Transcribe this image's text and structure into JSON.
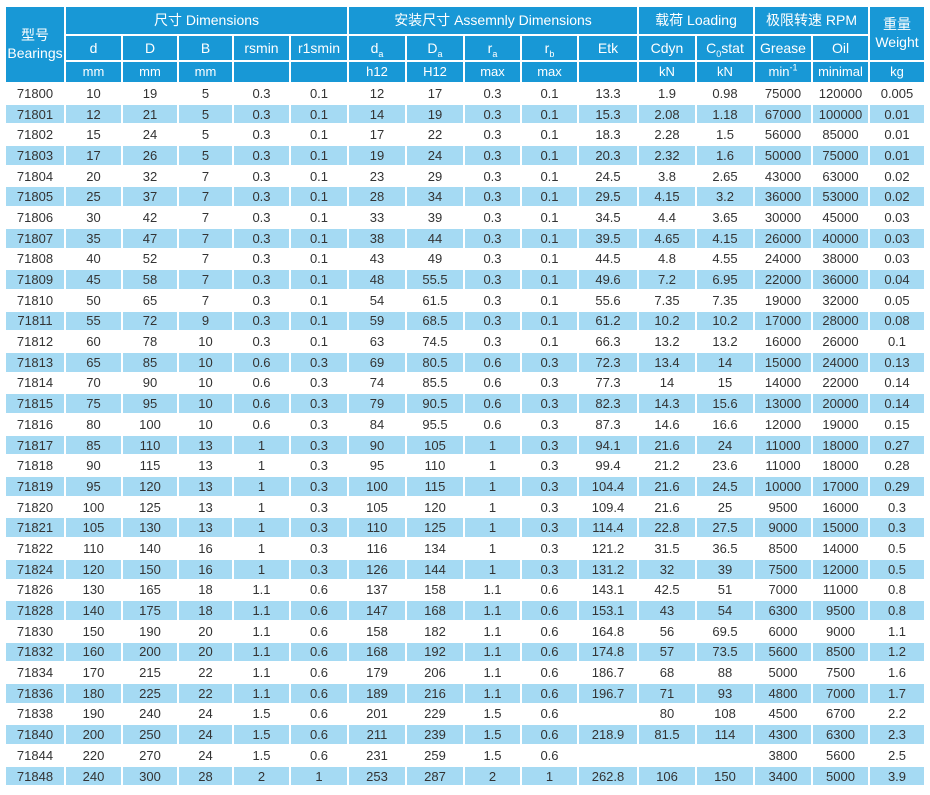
{
  "colors": {
    "header_blue": "#1898d6",
    "row_alt_blue": "#a5daf3",
    "cell_text": "#333333",
    "header_text": "#ffffff"
  },
  "header": {
    "bearings_zh": "型号",
    "bearings_en": "Bearings",
    "groups": {
      "dimensions": "尺寸 Dimensions",
      "assembly": "安装尺寸 Assemnly Dimensions",
      "loading": "载荷 Loading",
      "rpm": "极限转速 RPM",
      "weight_zh": "重量",
      "weight_en": "Weight"
    },
    "cols": {
      "d": "d",
      "D": "D",
      "B": "B",
      "rsmin": "rsmin",
      "r1smin": "r1smin",
      "da_base": "d",
      "da_sub": "a",
      "Da_base": "D",
      "Da_sub": "a",
      "ra_base": "r",
      "ra_sub": "a",
      "rb_base": "r",
      "rb_sub": "b",
      "etk": "Etk",
      "cdyn": "Cdyn",
      "costat_base": "C",
      "costat_sub": "0",
      "costat_rest": "stat",
      "grease": "Grease",
      "oil": "Oil"
    },
    "units": {
      "mm1": "mm",
      "mm2": "mm",
      "mm3": "mm",
      "rsmin": "",
      "r1smin": "",
      "h12": "h12",
      "H12": "H12",
      "ra": "max",
      "rb": "max",
      "etk": "",
      "kn1": "kN",
      "kn2": "kN",
      "grease_base": "min",
      "grease_sup": "-1",
      "oil": "minimal",
      "kg": "kg"
    }
  },
  "table": {
    "col_keys": [
      "bearing",
      "d",
      "D",
      "B",
      "rsmin",
      "r1smin",
      "da",
      "Da",
      "ra",
      "rb",
      "Etk",
      "Cdyn",
      "C0stat",
      "grease",
      "oil",
      "weight"
    ],
    "rows": [
      [
        "71800",
        "10",
        "19",
        "5",
        "0.3",
        "0.1",
        "12",
        "17",
        "0.3",
        "0.1",
        "13.3",
        "1.9",
        "0.98",
        "75000",
        "120000",
        "0.005"
      ],
      [
        "71801",
        "12",
        "21",
        "5",
        "0.3",
        "0.1",
        "14",
        "19",
        "0.3",
        "0.1",
        "15.3",
        "2.08",
        "1.18",
        "67000",
        "100000",
        "0.01"
      ],
      [
        "71802",
        "15",
        "24",
        "5",
        "0.3",
        "0.1",
        "17",
        "22",
        "0.3",
        "0.1",
        "18.3",
        "2.28",
        "1.5",
        "56000",
        "85000",
        "0.01"
      ],
      [
        "71803",
        "17",
        "26",
        "5",
        "0.3",
        "0.1",
        "19",
        "24",
        "0.3",
        "0.1",
        "20.3",
        "2.32",
        "1.6",
        "50000",
        "75000",
        "0.01"
      ],
      [
        "71804",
        "20",
        "32",
        "7",
        "0.3",
        "0.1",
        "23",
        "29",
        "0.3",
        "0.1",
        "24.5",
        "3.8",
        "2.65",
        "43000",
        "63000",
        "0.02"
      ],
      [
        "71805",
        "25",
        "37",
        "7",
        "0.3",
        "0.1",
        "28",
        "34",
        "0.3",
        "0.1",
        "29.5",
        "4.15",
        "3.2",
        "36000",
        "53000",
        "0.02"
      ],
      [
        "71806",
        "30",
        "42",
        "7",
        "0.3",
        "0.1",
        "33",
        "39",
        "0.3",
        "0.1",
        "34.5",
        "4.4",
        "3.65",
        "30000",
        "45000",
        "0.03"
      ],
      [
        "71807",
        "35",
        "47",
        "7",
        "0.3",
        "0.1",
        "38",
        "44",
        "0.3",
        "0.1",
        "39.5",
        "4.65",
        "4.15",
        "26000",
        "40000",
        "0.03"
      ],
      [
        "71808",
        "40",
        "52",
        "7",
        "0.3",
        "0.1",
        "43",
        "49",
        "0.3",
        "0.1",
        "44.5",
        "4.8",
        "4.55",
        "24000",
        "38000",
        "0.03"
      ],
      [
        "71809",
        "45",
        "58",
        "7",
        "0.3",
        "0.1",
        "48",
        "55.5",
        "0.3",
        "0.1",
        "49.6",
        "7.2",
        "6.95",
        "22000",
        "36000",
        "0.04"
      ],
      [
        "71810",
        "50",
        "65",
        "7",
        "0.3",
        "0.1",
        "54",
        "61.5",
        "0.3",
        "0.1",
        "55.6",
        "7.35",
        "7.35",
        "19000",
        "32000",
        "0.05"
      ],
      [
        "71811",
        "55",
        "72",
        "9",
        "0.3",
        "0.1",
        "59",
        "68.5",
        "0.3",
        "0.1",
        "61.2",
        "10.2",
        "10.2",
        "17000",
        "28000",
        "0.08"
      ],
      [
        "71812",
        "60",
        "78",
        "10",
        "0.3",
        "0.1",
        "63",
        "74.5",
        "0.3",
        "0.1",
        "66.3",
        "13.2",
        "13.2",
        "16000",
        "26000",
        "0.1"
      ],
      [
        "71813",
        "65",
        "85",
        "10",
        "0.6",
        "0.3",
        "69",
        "80.5",
        "0.6",
        "0.3",
        "72.3",
        "13.4",
        "14",
        "15000",
        "24000",
        "0.13"
      ],
      [
        "71814",
        "70",
        "90",
        "10",
        "0.6",
        "0.3",
        "74",
        "85.5",
        "0.6",
        "0.3",
        "77.3",
        "14",
        "15",
        "14000",
        "22000",
        "0.14"
      ],
      [
        "71815",
        "75",
        "95",
        "10",
        "0.6",
        "0.3",
        "79",
        "90.5",
        "0.6",
        "0.3",
        "82.3",
        "14.3",
        "15.6",
        "13000",
        "20000",
        "0.14"
      ],
      [
        "71816",
        "80",
        "100",
        "10",
        "0.6",
        "0.3",
        "84",
        "95.5",
        "0.6",
        "0.3",
        "87.3",
        "14.6",
        "16.6",
        "12000",
        "19000",
        "0.15"
      ],
      [
        "71817",
        "85",
        "110",
        "13",
        "1",
        "0.3",
        "90",
        "105",
        "1",
        "0.3",
        "94.1",
        "21.6",
        "24",
        "11000",
        "18000",
        "0.27"
      ],
      [
        "71818",
        "90",
        "115",
        "13",
        "1",
        "0.3",
        "95",
        "110",
        "1",
        "0.3",
        "99.4",
        "21.2",
        "23.6",
        "11000",
        "18000",
        "0.28"
      ],
      [
        "71819",
        "95",
        "120",
        "13",
        "1",
        "0.3",
        "100",
        "115",
        "1",
        "0.3",
        "104.4",
        "21.6",
        "24.5",
        "10000",
        "17000",
        "0.29"
      ],
      [
        "71820",
        "100",
        "125",
        "13",
        "1",
        "0.3",
        "105",
        "120",
        "1",
        "0.3",
        "109.4",
        "21.6",
        "25",
        "9500",
        "16000",
        "0.3"
      ],
      [
        "71821",
        "105",
        "130",
        "13",
        "1",
        "0.3",
        "110",
        "125",
        "1",
        "0.3",
        "114.4",
        "22.8",
        "27.5",
        "9000",
        "15000",
        "0.3"
      ],
      [
        "71822",
        "110",
        "140",
        "16",
        "1",
        "0.3",
        "116",
        "134",
        "1",
        "0.3",
        "121.2",
        "31.5",
        "36.5",
        "8500",
        "14000",
        "0.5"
      ],
      [
        "71824",
        "120",
        "150",
        "16",
        "1",
        "0.3",
        "126",
        "144",
        "1",
        "0.3",
        "131.2",
        "32",
        "39",
        "7500",
        "12000",
        "0.5"
      ],
      [
        "71826",
        "130",
        "165",
        "18",
        "1.1",
        "0.6",
        "137",
        "158",
        "1.1",
        "0.6",
        "143.1",
        "42.5",
        "51",
        "7000",
        "11000",
        "0.8"
      ],
      [
        "71828",
        "140",
        "175",
        "18",
        "1.1",
        "0.6",
        "147",
        "168",
        "1.1",
        "0.6",
        "153.1",
        "43",
        "54",
        "6300",
        "9500",
        "0.8"
      ],
      [
        "71830",
        "150",
        "190",
        "20",
        "1.1",
        "0.6",
        "158",
        "182",
        "1.1",
        "0.6",
        "164.8",
        "56",
        "69.5",
        "6000",
        "9000",
        "1.1"
      ],
      [
        "71832",
        "160",
        "200",
        "20",
        "1.1",
        "0.6",
        "168",
        "192",
        "1.1",
        "0.6",
        "174.8",
        "57",
        "73.5",
        "5600",
        "8500",
        "1.2"
      ],
      [
        "71834",
        "170",
        "215",
        "22",
        "1.1",
        "0.6",
        "179",
        "206",
        "1.1",
        "0.6",
        "186.7",
        "68",
        "88",
        "5000",
        "7500",
        "1.6"
      ],
      [
        "71836",
        "180",
        "225",
        "22",
        "1.1",
        "0.6",
        "189",
        "216",
        "1.1",
        "0.6",
        "196.7",
        "71",
        "93",
        "4800",
        "7000",
        "1.7"
      ],
      [
        "71838",
        "190",
        "240",
        "24",
        "1.5",
        "0.6",
        "201",
        "229",
        "1.5",
        "0.6",
        "",
        "80",
        "108",
        "4500",
        "6700",
        "2.2"
      ],
      [
        "71840",
        "200",
        "250",
        "24",
        "1.5",
        "0.6",
        "211",
        "239",
        "1.5",
        "0.6",
        "218.9",
        "81.5",
        "114",
        "4300",
        "6300",
        "2.3"
      ],
      [
        "71844",
        "220",
        "270",
        "24",
        "1.5",
        "0.6",
        "231",
        "259",
        "1.5",
        "0.6",
        "",
        "",
        "",
        "3800",
        "5600",
        "2.5"
      ],
      [
        "71848",
        "240",
        "300",
        "28",
        "2",
        "1",
        "253",
        "287",
        "2",
        "1",
        "262.8",
        "106",
        "150",
        "3400",
        "5000",
        "3.9"
      ]
    ]
  }
}
